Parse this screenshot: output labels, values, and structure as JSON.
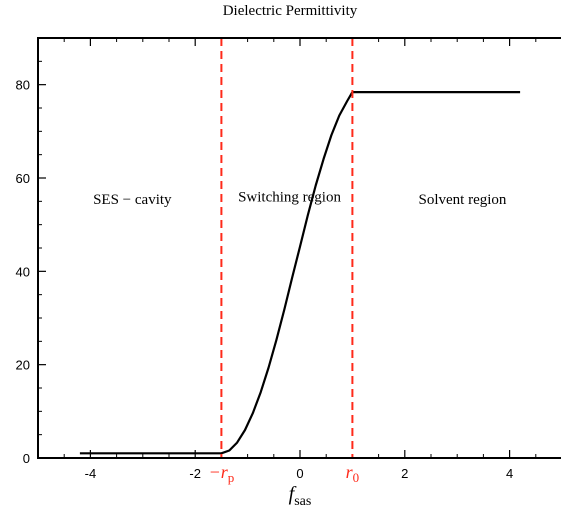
{
  "chart_data": {
    "type": "line",
    "title": "Dielectric Permittivity",
    "xlabel": {
      "main": "f",
      "sub": "sas"
    },
    "ylabel": "",
    "xlim": [
      -5.0,
      5.0
    ],
    "ylim": [
      0,
      90
    ],
    "xticks": [
      -4,
      -2,
      0,
      2,
      4
    ],
    "xtick_labels": [
      "-4",
      "-2",
      "0",
      "2",
      "4"
    ],
    "yticks": [
      0,
      20,
      40,
      60,
      80
    ],
    "ytick_labels": [
      "0",
      "20",
      "40",
      "60",
      "80"
    ],
    "grid": false,
    "series": [
      {
        "color": "#000000",
        "x": [
          -4.2,
          -1.5,
          -1.35,
          -1.2,
          -1.05,
          -0.9,
          -0.75,
          -0.6,
          -0.45,
          -0.3,
          -0.15,
          0.0,
          0.15,
          0.3,
          0.45,
          0.6,
          0.75,
          0.9,
          1.0,
          4.2
        ],
        "y": [
          1.0,
          1.0,
          1.6,
          3.3,
          6.0,
          9.6,
          14.1,
          19.4,
          25.3,
          31.8,
          38.6,
          45.3,
          52.1,
          58.4,
          64.1,
          69.2,
          73.4,
          76.5,
          78.4,
          78.4
        ]
      }
    ],
    "vlines": [
      {
        "x": -1.5,
        "color": "#ff2a1a",
        "style": "dashed",
        "label": {
          "prefix": "−r",
          "sub": "p"
        }
      },
      {
        "x": 1.0,
        "color": "#ff2a1a",
        "style": "dashed",
        "label": {
          "prefix": "r",
          "sub": "0"
        }
      }
    ],
    "region_labels": [
      {
        "text": "SES − cavity",
        "x": -3.2,
        "y": 55.5
      },
      {
        "text": "Switching region",
        "x": -0.2,
        "y": 56.0
      },
      {
        "text": "Solvent region",
        "x": 3.1,
        "y": 55.5
      }
    ]
  }
}
